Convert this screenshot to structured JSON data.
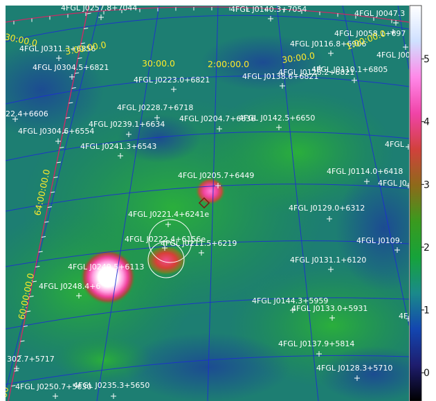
{
  "colorbar": {
    "ticks": [
      {
        "label": "0",
        "value": 0
      },
      {
        "label": "1",
        "value": 1
      },
      {
        "label": "2",
        "value": 2
      },
      {
        "label": "3",
        "value": 3
      },
      {
        "label": "4",
        "value": 4
      },
      {
        "label": "5",
        "value": 5
      }
    ],
    "min": -0.45,
    "max": 5.85,
    "colors": [
      "#000000",
      "#1e1d6e",
      "#1346b0",
      "#1a8a8a",
      "#16a33a",
      "#3a9a1e",
      "#8e6a1a",
      "#d1413c",
      "#f044a8",
      "#ff88e8",
      "#cfe0ff",
      "#ffffff"
    ]
  },
  "coordinate_labels": [
    {
      "text": "30:00.0"
    },
    {
      "text": "3:00:00.0"
    },
    {
      "text": "30:00.0"
    },
    {
      "text": "2:00:00.0"
    },
    {
      "text": "30:00.0"
    },
    {
      "text": "1:00:00.0"
    },
    {
      "text": "64:00:00.0"
    },
    {
      "text": "60:00:00.0"
    },
    {
      "text": "00"
    }
  ],
  "sources": [
    {
      "label": "4FGL J0257.8+7044"
    },
    {
      "label": "4FGL J0140.3+7054"
    },
    {
      "label": "4FGL J0047.3"
    },
    {
      "label": "4FGL J0058.1+697"
    },
    {
      "label": "4FGL J0311.3+6856"
    },
    {
      "label": "4FGL J0116.8+6906"
    },
    {
      "label": "4FGL J0057.5+6"
    },
    {
      "label": "4FGL J0304.5+6821"
    },
    {
      "label": "4FGL J0128.2+6821"
    },
    {
      "label": "4FGL J0110.1+6805"
    },
    {
      "label": "4FGL J0138.6+6821"
    },
    {
      "label": "4FGL J0223.0+6821"
    },
    {
      "label": "4FGL J0228.7+6718"
    },
    {
      "label": "22.4+6606"
    },
    {
      "label": "4FGL J0204.7+6636"
    },
    {
      "label": "4FGL J0142.5+6650"
    },
    {
      "label": "4FGL J0239.1+6634"
    },
    {
      "label": "4FGL J0304.6+6554"
    },
    {
      "label": "4FGL J0241.3+6543"
    },
    {
      "label": "4FGL"
    },
    {
      "label": "4FGL J0205.7+6449"
    },
    {
      "label": "4FGL J0114.0+6418"
    },
    {
      "label": "4FGL J0"
    },
    {
      "label": "4FGL J0221.4+6241e"
    },
    {
      "label": "4FGL J0129.0+6312"
    },
    {
      "label": "4FGL J0222.4+6156e"
    },
    {
      "label": "4FGL J0211.5+6219"
    },
    {
      "label": "4FGL J0109."
    },
    {
      "label": "4FGL J0131.1+6120"
    },
    {
      "label": "4FGL J0249.5+6113"
    },
    {
      "label": "4FGL J0248.4+6"
    },
    {
      "label": "4FGL J0144.3+5959"
    },
    {
      "label": "4FGL J0133.0+5931"
    },
    {
      "label": "4F"
    },
    {
      "label": "4FGL J0137.9+5814"
    },
    {
      "label": "302.7+5717"
    },
    {
      "label": "4FGL J0128.3+5710"
    },
    {
      "label": "4FGL J0250.7+5630"
    },
    {
      "label": "4FGL J0235.3+5650"
    }
  ]
}
